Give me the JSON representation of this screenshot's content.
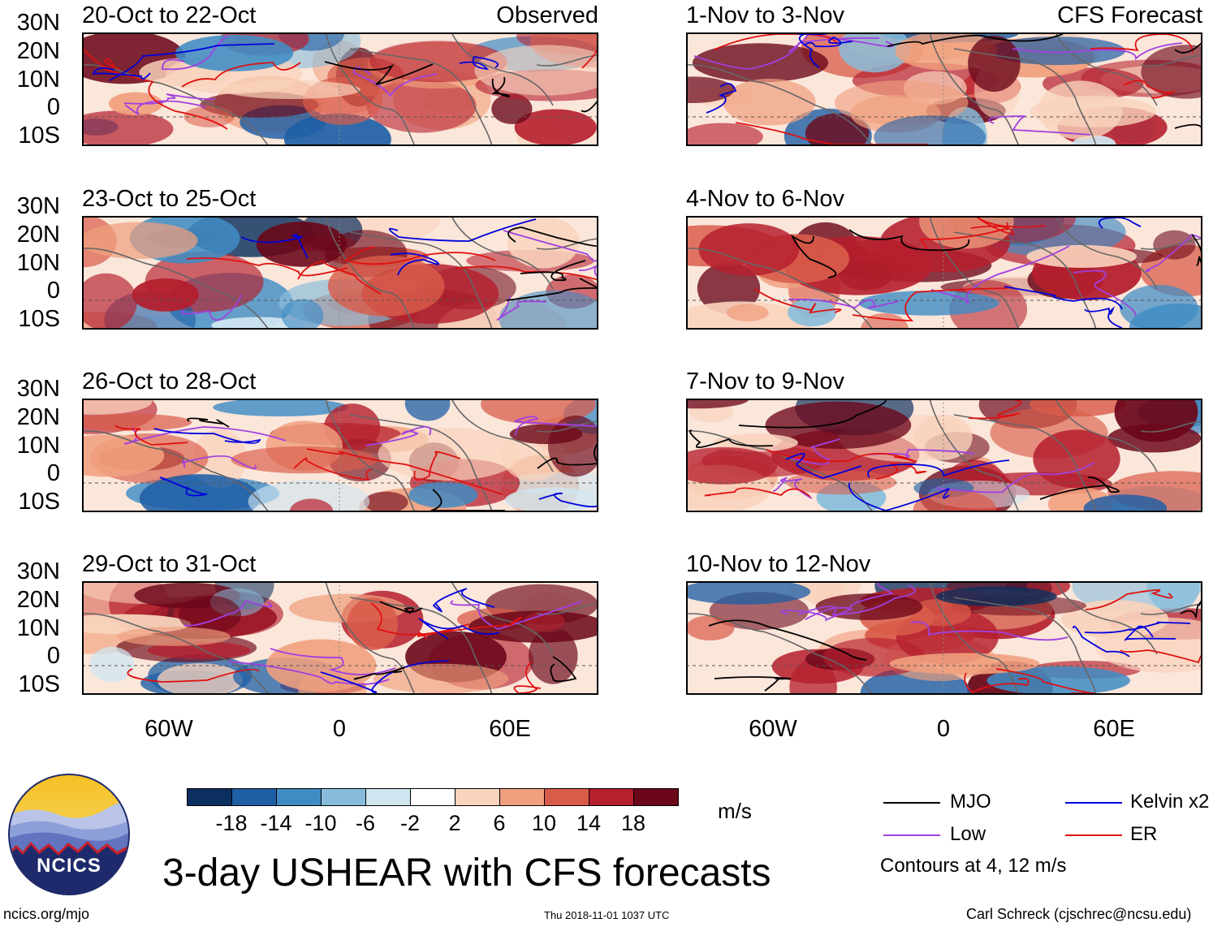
{
  "panels_observed": [
    {
      "title": "20-Oct to 22-Oct",
      "tag": "Observed"
    },
    {
      "title": "23-Oct to 25-Oct",
      "tag": ""
    },
    {
      "title": "26-Oct to 28-Oct",
      "tag": ""
    },
    {
      "title": "29-Oct to 31-Oct",
      "tag": ""
    }
  ],
  "panels_forecast": [
    {
      "title": "1-Nov to 3-Nov",
      "tag": "CFS Forecast"
    },
    {
      "title": "4-Nov to 6-Nov",
      "tag": ""
    },
    {
      "title": "7-Nov to 9-Nov",
      "tag": ""
    },
    {
      "title": "10-Nov to 12-Nov",
      "tag": ""
    }
  ],
  "lat_labels": [
    "30N",
    "20N",
    "10N",
    "0",
    "10S"
  ],
  "lon_labels": [
    "60W",
    "0",
    "60E"
  ],
  "colorbar": {
    "ticks": [
      "-18",
      "-14",
      "-10",
      "-6",
      "-2",
      "2",
      "6",
      "10",
      "14",
      "18"
    ],
    "colors": [
      "#0b2f5e",
      "#1f5fa6",
      "#3f8cc4",
      "#87bddb",
      "#cfe5f0",
      "#ffffff",
      "#f9d3bd",
      "#f0a07e",
      "#d95c4a",
      "#b51f2e",
      "#6b0719"
    ],
    "units": "m/s"
  },
  "legend": {
    "items": [
      {
        "label": "MJO",
        "color": "#000000"
      },
      {
        "label": "Kelvin x2",
        "color": "#0000dd"
      },
      {
        "label": "Low",
        "color": "#a040e0"
      },
      {
        "label": "ER",
        "color": "#e01010"
      }
    ],
    "note": "Contours at 4, 12 m/s"
  },
  "main_title": "3-day USHEAR with CFS forecasts",
  "logo_text": "NCICS",
  "footer": {
    "left": "ncics.org/mjo",
    "center": "Thu 2018-11-01 1037 UTC",
    "right": "Carl Schreck (cjschrec@ncsu.edu)"
  }
}
